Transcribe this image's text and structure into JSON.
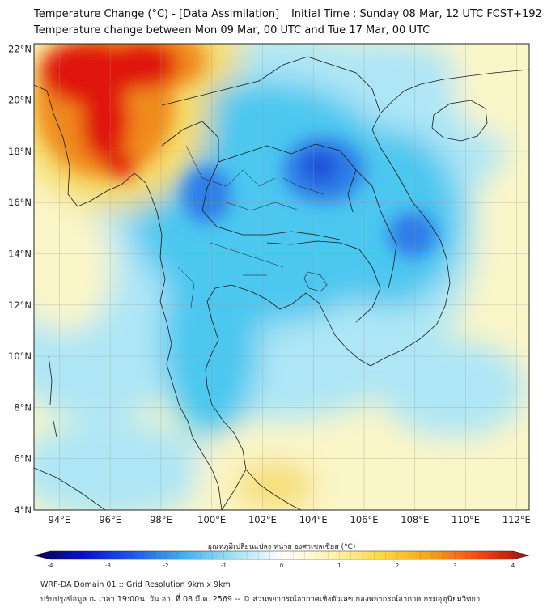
{
  "title_line1": "Temperature Change (°C) - [Data Assimilation] _ Initial Time : Sunday 08 Mar, 12 UTC FCST+192",
  "title_line2": "Temperature change between Mon 09 Mar, 00 UTC and Tue 17 Mar, 00 UTC",
  "map": {
    "lon_range": [
      93,
      112.5
    ],
    "lat_range": [
      4,
      22.2
    ],
    "lon_ticks": [
      {
        "value": 94,
        "label": "94°E"
      },
      {
        "value": 96,
        "label": "96°E"
      },
      {
        "value": 98,
        "label": "98°E"
      },
      {
        "value": 100,
        "label": "100°E"
      },
      {
        "value": 102,
        "label": "102°E"
      },
      {
        "value": 104,
        "label": "104°E"
      },
      {
        "value": 106,
        "label": "106°E"
      },
      {
        "value": 108,
        "label": "108°E"
      },
      {
        "value": 110,
        "label": "110°E"
      },
      {
        "value": 112,
        "label": "112°E"
      }
    ],
    "lat_ticks": [
      {
        "value": 22,
        "label": "22°N"
      },
      {
        "value": 20,
        "label": "20°N"
      },
      {
        "value": 18,
        "label": "18°N"
      },
      {
        "value": 16,
        "label": "16°N"
      },
      {
        "value": 14,
        "label": "14°N"
      },
      {
        "value": 12,
        "label": "12°N"
      },
      {
        "value": 10,
        "label": "10°N"
      },
      {
        "value": 8,
        "label": "8°N"
      },
      {
        "value": 6,
        "label": "6°N"
      },
      {
        "value": 4,
        "label": "4°N"
      }
    ],
    "colors": {
      "warm_strong": "#e0120c",
      "warm_mid": "#f08a1a",
      "warm_light": "#f5dc6a",
      "neutral": "#fbf6c8",
      "cool_light": "#aee6f6",
      "cool_mid": "#4cc7f0",
      "cool_strong": "#2d7be8",
      "cool_deep": "#1f4fd8"
    }
  },
  "colorbar": {
    "title": "อุณหภูมิเปลี่ยนแปลง หน่วย องศาเซลเซียส (°C)",
    "min": -4,
    "max": 4,
    "tick_labels": [
      {
        "value": -4,
        "label": "-4"
      },
      {
        "value": -3,
        "label": "-3"
      },
      {
        "value": -2,
        "label": "-2"
      },
      {
        "value": -1,
        "label": "-1"
      },
      {
        "value": 0,
        "label": "0"
      },
      {
        "value": 1,
        "label": "1"
      },
      {
        "value": 2,
        "label": "2"
      },
      {
        "value": 3,
        "label": "3"
      },
      {
        "value": 4,
        "label": "4"
      }
    ],
    "stops": [
      "#08004a",
      "#0a10c8",
      "#1f5ae6",
      "#3fb0f0",
      "#9ee0f6",
      "#ffffff",
      "#fff4b0",
      "#ffd84a",
      "#f7a21c",
      "#ef4a12",
      "#9c0c0a"
    ]
  },
  "footer_line1": "WRF-DA Domain 01 :: Grid Resolution 9km x 9km",
  "footer_line2": "ปรับปรุงข้อมูล ณ เวลา 19:00น. วัน อา. ที่ 08 มี.ค. 2569 -- © ส่วนพยากรณ์อากาศเชิงตัวเลข กองพยากรณ์อากาศ กรมอุตุนิยมวิทยา"
}
